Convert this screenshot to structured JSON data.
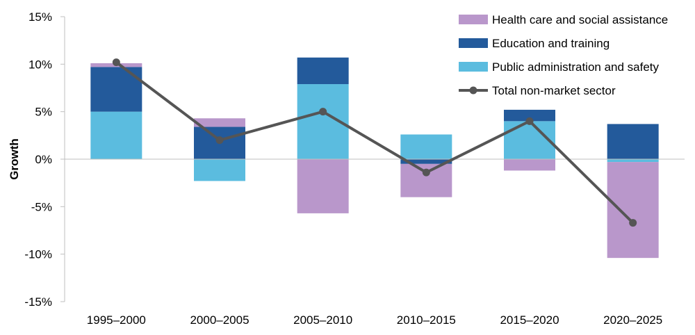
{
  "chart_data": {
    "type": "bar",
    "stacked": true,
    "categories": [
      "1995–2000",
      "2000–2005",
      "2005–2010",
      "2010–2015",
      "2015–2020",
      "2020–2025"
    ],
    "ylabel": "Growth",
    "ylim": [
      -15,
      15
    ],
    "yticks": [
      -15,
      -10,
      -5,
      0,
      5,
      10,
      15
    ],
    "ytick_labels": [
      "-15%",
      "-10%",
      "-5%",
      "0%",
      "5%",
      "10%",
      "15%"
    ],
    "grid": false,
    "legend_position": "top-right",
    "series": [
      {
        "name": "Public administration and safety",
        "kind": "bar",
        "color": "#5bbcdf",
        "values": [
          5.0,
          -2.3,
          7.9,
          2.6,
          4.0,
          -0.3
        ]
      },
      {
        "name": "Education and training",
        "kind": "bar",
        "color": "#235a9b",
        "values": [
          4.7,
          3.4,
          2.8,
          -0.5,
          1.2,
          3.7
        ]
      },
      {
        "name": "Health care and social assistance",
        "kind": "bar",
        "color": "#b997cb",
        "values": [
          0.4,
          0.9,
          -5.7,
          -3.5,
          -1.2,
          -10.1
        ]
      },
      {
        "name": "Total non-market sector",
        "kind": "line",
        "color": "#555555",
        "values": [
          10.2,
          2.0,
          5.0,
          -1.4,
          4.0,
          -6.7
        ]
      }
    ],
    "legend_order": [
      "Health care and social assistance",
      "Education and training",
      "Public administration and safety",
      "Total non-market sector"
    ]
  }
}
